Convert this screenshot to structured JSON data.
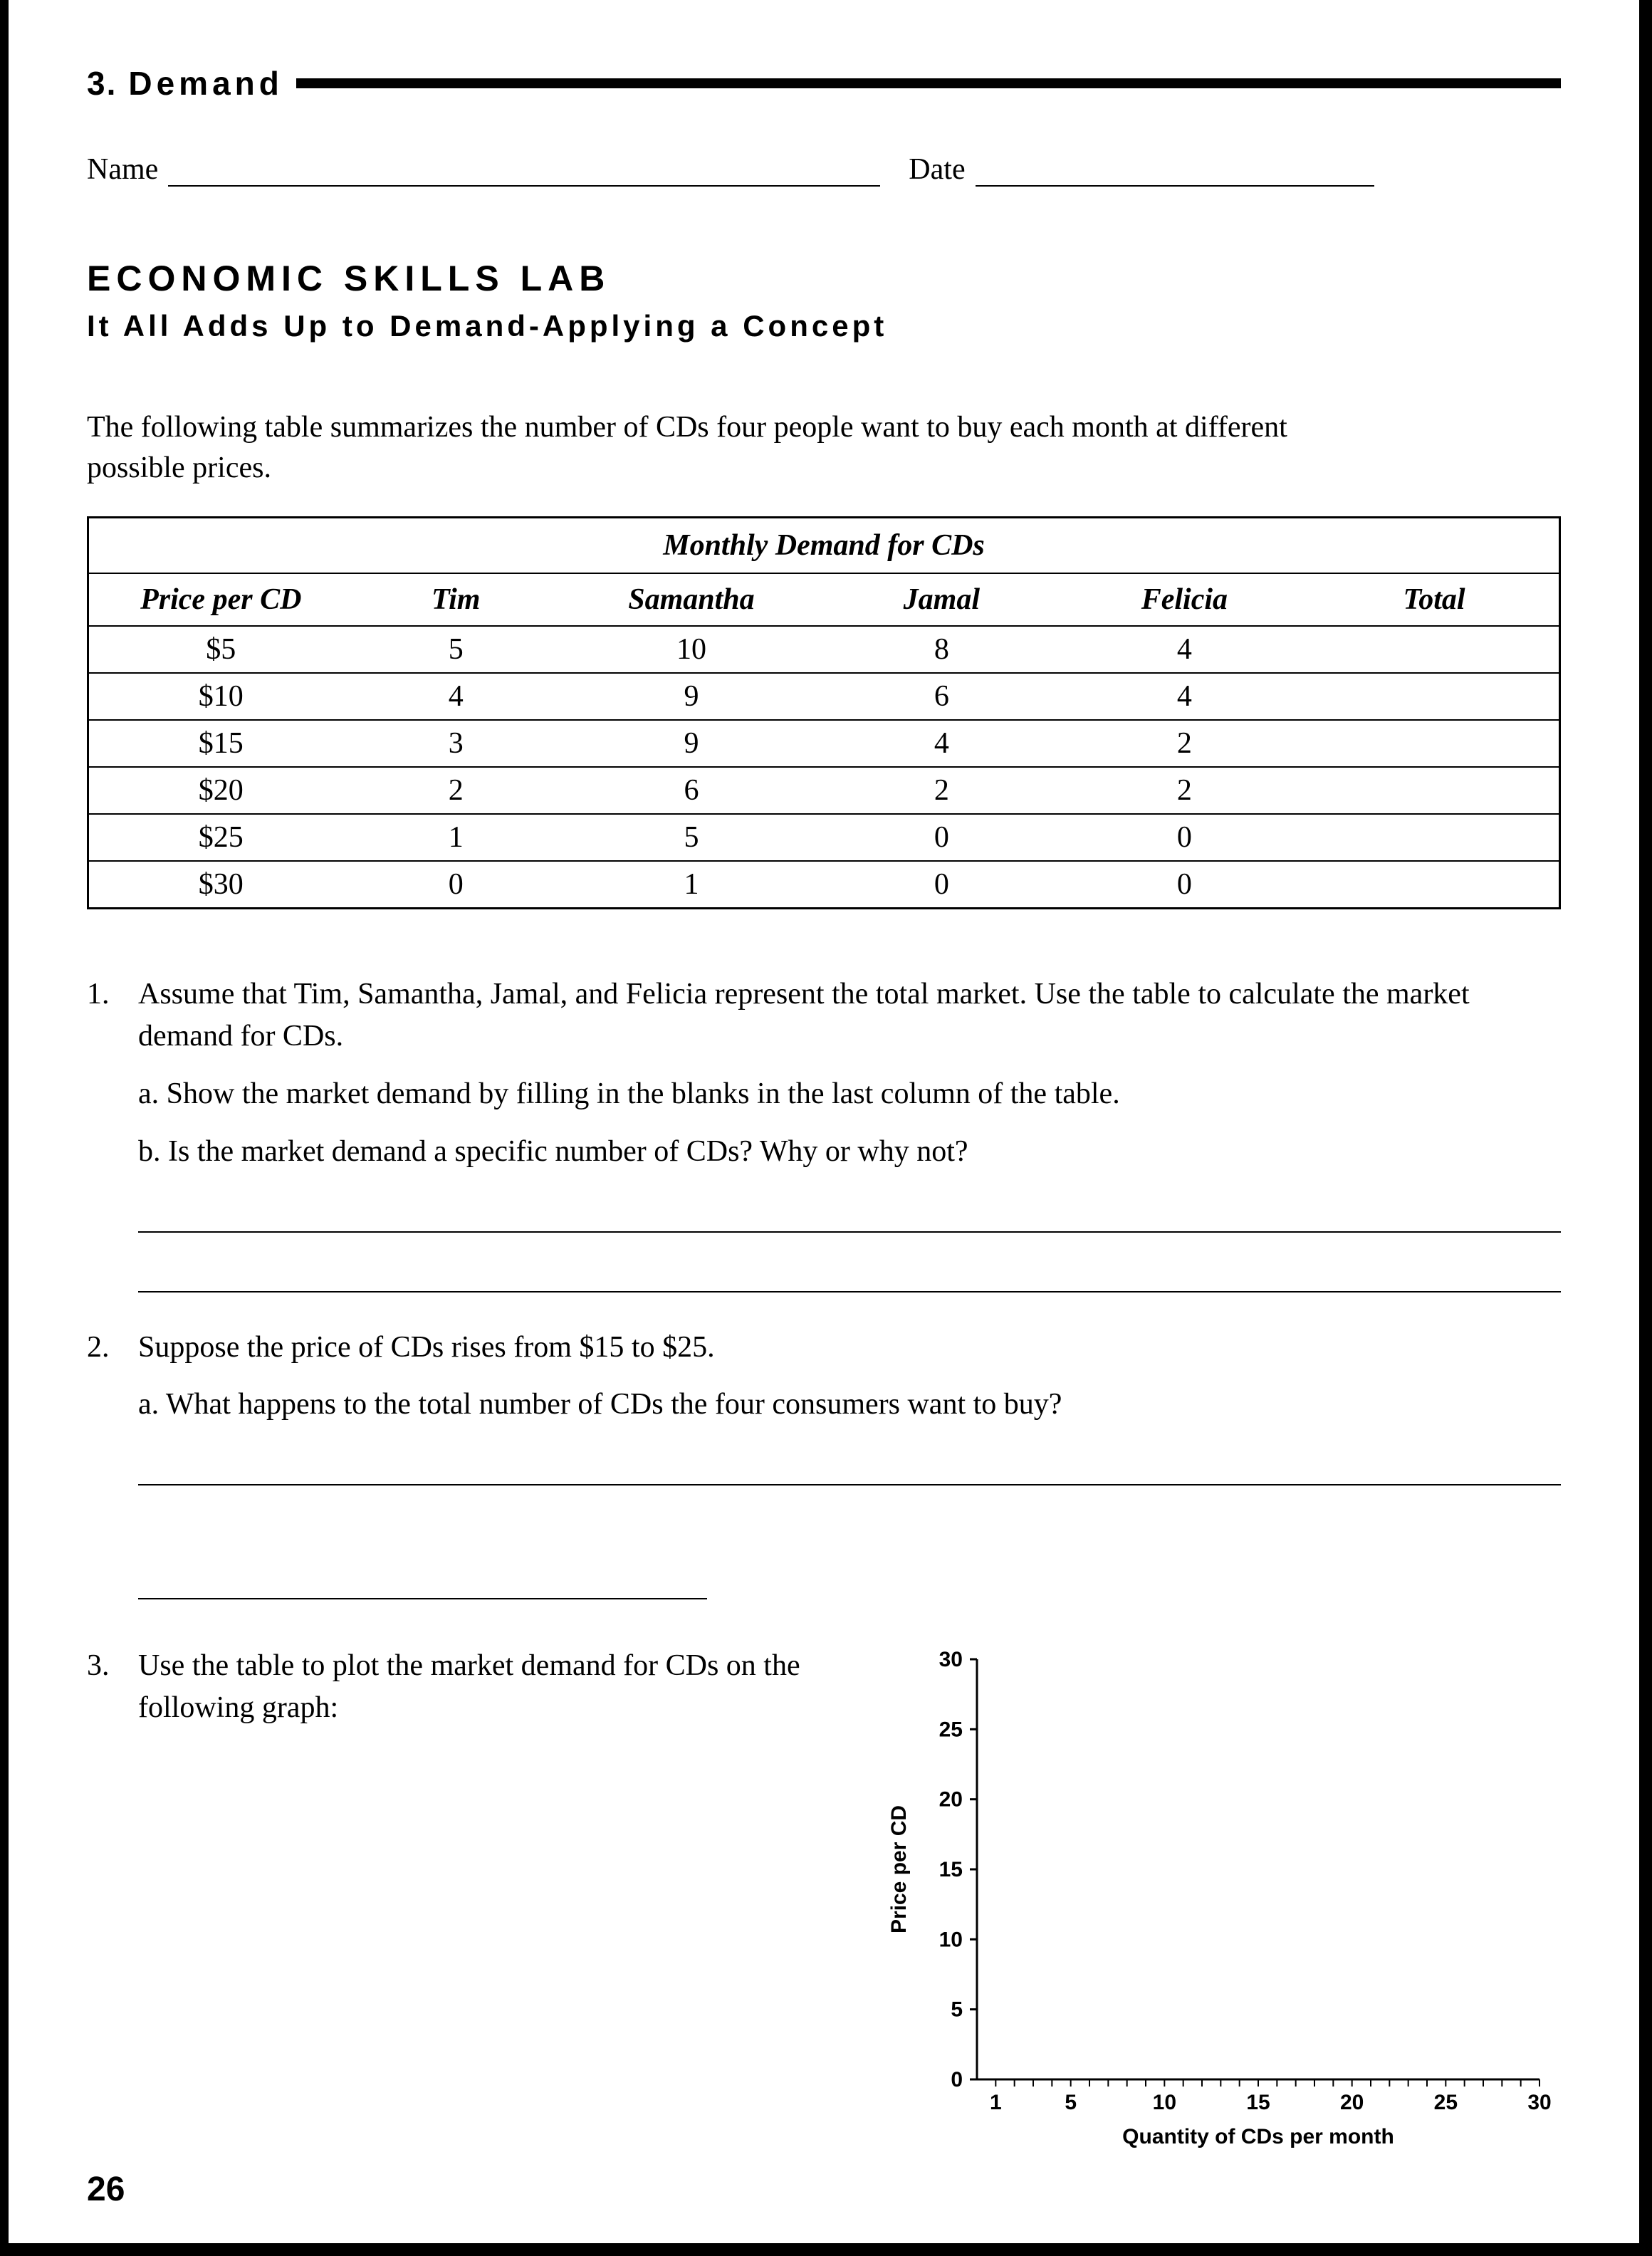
{
  "chapter": {
    "num": "3.",
    "title": "Demand"
  },
  "fields": {
    "name_label": "Name",
    "date_label": "Date"
  },
  "headings": {
    "skills": "ECONOMIC SKILLS LAB",
    "subtitle": "It All Adds Up to Demand-Applying a Concept"
  },
  "intro": "The following table summarizes the number of CDs four people want to buy each month at different possible prices.",
  "table": {
    "title": "Monthly Demand for CDs",
    "columns": [
      "Price per CD",
      "Tim",
      "Samantha",
      "Jamal",
      "Felicia",
      "Total"
    ],
    "rows": [
      [
        "$5",
        "5",
        "10",
        "8",
        "4",
        ""
      ],
      [
        "$10",
        "4",
        "9",
        "6",
        "4",
        ""
      ],
      [
        "$15",
        "3",
        "9",
        "4",
        "2",
        ""
      ],
      [
        "$20",
        "2",
        "6",
        "2",
        "2",
        ""
      ],
      [
        "$25",
        "1",
        "5",
        "0",
        "0",
        ""
      ],
      [
        "$30",
        "0",
        "1",
        "0",
        "0",
        ""
      ]
    ],
    "col_widths_pct": [
      18,
      14,
      18,
      16,
      17,
      17
    ]
  },
  "questions": {
    "q1": {
      "num": "1.",
      "text": "Assume that Tim, Samantha, Jamal, and Felicia represent the total market. Use the table to calculate the market demand for CDs.",
      "a": "a. Show the market demand by filling in the blanks in the last column of the table.",
      "b": "b. Is the market demand a specific number of CDs? Why or why not?"
    },
    "q2": {
      "num": "2.",
      "text": "Suppose the price of CDs rises from $15 to $25.",
      "a": "a. What happens to the total number of CDs the four consumers want to buy?"
    },
    "q3": {
      "num": "3.",
      "text": "Use the table to plot the market demand for CDs on the following graph:"
    }
  },
  "chart": {
    "type": "scatter-axes-blank",
    "ylabel": "Price per CD",
    "xlabel": "Quantity of CDs per month",
    "y_ticks": [
      0,
      5,
      10,
      15,
      20,
      25,
      30
    ],
    "x_ticks": [
      1,
      5,
      10,
      15,
      20,
      25,
      30
    ],
    "ylim": [
      0,
      30
    ],
    "xlim": [
      0,
      30
    ],
    "axis_color": "#000000",
    "tick_len": 10,
    "minor_tick_step": 1,
    "background_color": "#ffffff",
    "title_fontsize": 30,
    "label_fontsize": 30,
    "tick_fontsize": 30,
    "line_width": 3
  },
  "page_number": "26"
}
